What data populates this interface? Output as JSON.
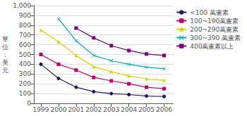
{
  "chart_data": {
    "type": "line",
    "ylabel": "單位：美元",
    "x": [
      1999,
      2000,
      2001,
      2002,
      2003,
      2004,
      2005,
      2006
    ],
    "series": [
      {
        "name": "<100 萬畫素",
        "color": "#1a1a5c",
        "marker": "circle",
        "values": [
          400,
          255,
          165,
          120,
          100,
          90,
          75,
          70
        ]
      },
      {
        "name": "100~190萬畫素",
        "color": "#c0006a",
        "marker": "square",
        "values": [
          500,
          400,
          340,
          265,
          230,
          200,
          165,
          150
        ]
      },
      {
        "name": "200~290萬畫素",
        "color": "#d4d400",
        "marker": "triangle",
        "values": [
          750,
          630,
          490,
          375,
          325,
          280,
          250,
          235
        ]
      },
      {
        "name": "300~390 萬畫素",
        "color": "#00aaaa",
        "marker": "x",
        "values": [
          null,
          865,
          640,
          490,
          435,
          400,
          370,
          355
        ]
      },
      {
        "name": "400萬畫素以上",
        "color": "#7b007b",
        "marker": "square",
        "values": [
          null,
          null,
          770,
          670,
          590,
          540,
          505,
          490
        ]
      }
    ],
    "xlim": [
      1998.6,
      2006.5
    ],
    "xticks": [
      1999,
      2000,
      2001,
      2002,
      2003,
      2004,
      2005,
      2006
    ],
    "ylim": [
      0,
      1000
    ],
    "yticks": [
      0,
      100,
      200,
      300,
      400,
      500,
      600,
      700,
      800,
      900,
      {
        "value": 1000,
        "label": "1,000"
      }
    ],
    "grid": true,
    "legend": "upper right"
  }
}
